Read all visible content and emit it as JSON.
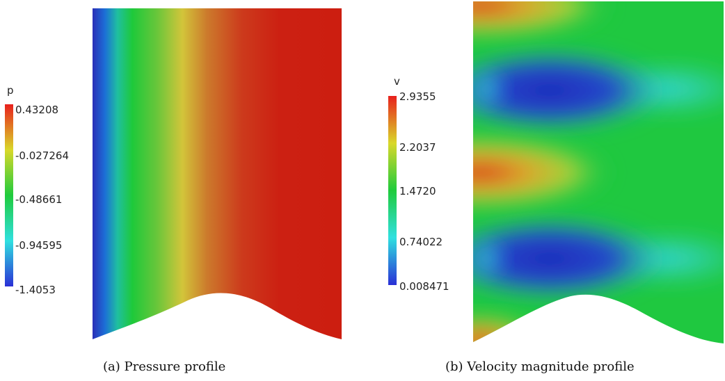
{
  "panels": [
    {
      "caption": "(a) Pressure profile",
      "colorbar": {
        "title": "p",
        "ticks": [
          "0.43208",
          "-0.027264",
          "-0.48661",
          "-0.94595",
          "-1.4053"
        ],
        "colors": [
          "#e8201d",
          "#d9d82a",
          "#1fcb3c",
          "#2fe0e0",
          "#2a2fd6"
        ]
      }
    },
    {
      "caption": "(b) Velocity magnitude profile",
      "colorbar": {
        "title": "v",
        "ticks": [
          "2.9355",
          "2.2037",
          "1.4720",
          "0.74022",
          "0.008471"
        ],
        "colors": [
          "#e8201d",
          "#d9d82a",
          "#1fcb3c",
          "#2fe0e0",
          "#2a2fd6"
        ]
      }
    }
  ]
}
